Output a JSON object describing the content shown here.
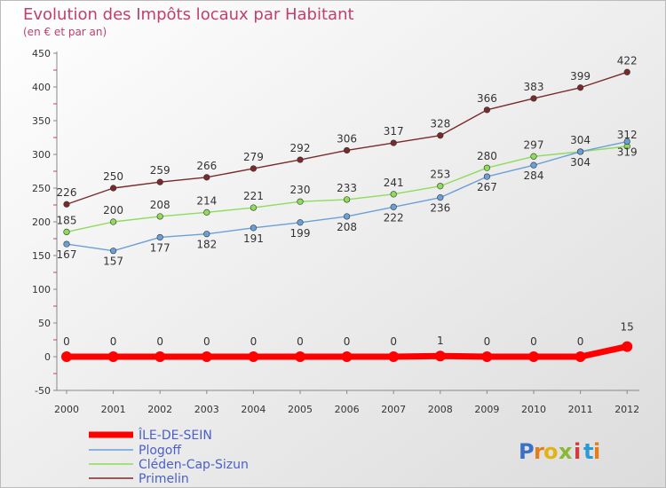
{
  "chart_data": {
    "type": "line",
    "title": "Evolution des Impôts locaux par Habitant",
    "subtitle": "(en € et par an)",
    "x": [
      "2000",
      "2001",
      "2002",
      "2003",
      "2004",
      "2005",
      "2006",
      "2007",
      "2008",
      "2009",
      "2010",
      "2011",
      "2012"
    ],
    "ylim": [
      -50,
      450
    ],
    "yticks": [
      -50,
      0,
      50,
      100,
      150,
      200,
      250,
      300,
      350,
      400,
      450
    ],
    "grid": false,
    "legend_position": "bottom-left",
    "series": [
      {
        "name": "ÎLE-DE-SEIN",
        "color": "#ff0000",
        "values": [
          0,
          0,
          0,
          0,
          0,
          0,
          0,
          0,
          1,
          0,
          0,
          0,
          15
        ]
      },
      {
        "name": "Plogoff",
        "color": "#6aa0d8",
        "values": [
          167,
          157,
          177,
          182,
          191,
          199,
          208,
          222,
          236,
          267,
          284,
          304,
          319
        ]
      },
      {
        "name": "Cléden-Cap-Sizun",
        "color": "#8edc5a",
        "values": [
          185,
          200,
          208,
          214,
          221,
          230,
          233,
          241,
          253,
          280,
          297,
          304,
          312
        ]
      },
      {
        "name": "Primelin",
        "color": "#7a2a2a",
        "values": [
          226,
          250,
          259,
          266,
          279,
          292,
          306,
          317,
          328,
          366,
          383,
          399,
          422
        ]
      }
    ]
  },
  "logo": {
    "text": "Proxiti",
    "letters": [
      "P",
      "r",
      "o",
      "x",
      "i",
      "t",
      "i"
    ],
    "colors": [
      "#3b6fc8",
      "#e57d18",
      "#e3b316",
      "#8ab832",
      "#d13b3b",
      "#2a9ad6",
      "#e57d18"
    ]
  }
}
